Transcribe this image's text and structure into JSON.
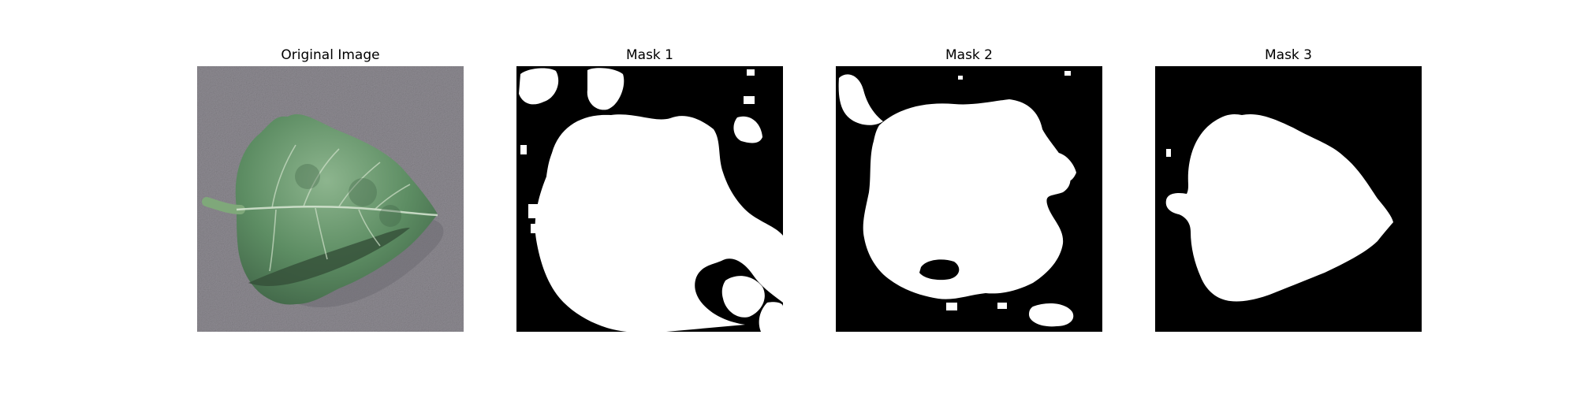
{
  "panels": [
    {
      "title": "Original Image",
      "kind": "photo",
      "subject": "green leaf on gray textured surface"
    },
    {
      "title": "Mask 1",
      "kind": "mask"
    },
    {
      "title": "Mask 2",
      "kind": "mask"
    },
    {
      "title": "Mask 3",
      "kind": "mask"
    }
  ],
  "colors": {
    "background": "#ffffff",
    "mask_background": "#000000",
    "mask_foreground": "#ffffff",
    "surface_gray": "#8e8b92",
    "leaf_green": "#5f8f63",
    "leaf_dark": "#3c5f42",
    "leaf_light": "#8fb58f"
  }
}
